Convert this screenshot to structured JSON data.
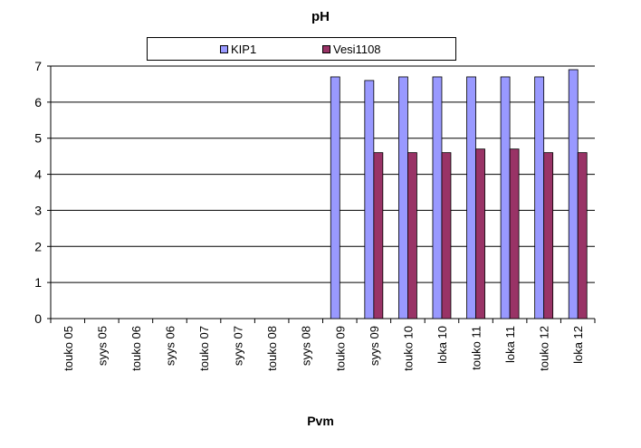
{
  "chart_data": {
    "type": "bar",
    "title": "pH",
    "xlabel": "Pvm",
    "ylabel": "",
    "ylim": [
      0,
      7
    ],
    "yticks": [
      0,
      1,
      2,
      3,
      4,
      5,
      6,
      7
    ],
    "grid": true,
    "legend_position": "top",
    "categories": [
      "touko 05",
      "syys 05",
      "touko 06",
      "syys 06",
      "touko 07",
      "syys 07",
      "touko 08",
      "syys 08",
      "touko 09",
      "syys 09",
      "touko 10",
      "loka 10",
      "touko 11",
      "loka 11",
      "touko 12",
      "loka 12"
    ],
    "series": [
      {
        "name": "KIP1",
        "color": "#9999FF",
        "values": [
          null,
          null,
          null,
          null,
          null,
          null,
          null,
          null,
          6.7,
          6.6,
          6.7,
          6.7,
          6.7,
          6.7,
          6.7,
          6.9
        ]
      },
      {
        "name": "Vesi1108",
        "color": "#993366",
        "values": [
          null,
          null,
          null,
          null,
          null,
          null,
          null,
          null,
          null,
          4.6,
          4.6,
          4.6,
          4.7,
          4.7,
          4.6,
          4.6
        ]
      }
    ]
  }
}
